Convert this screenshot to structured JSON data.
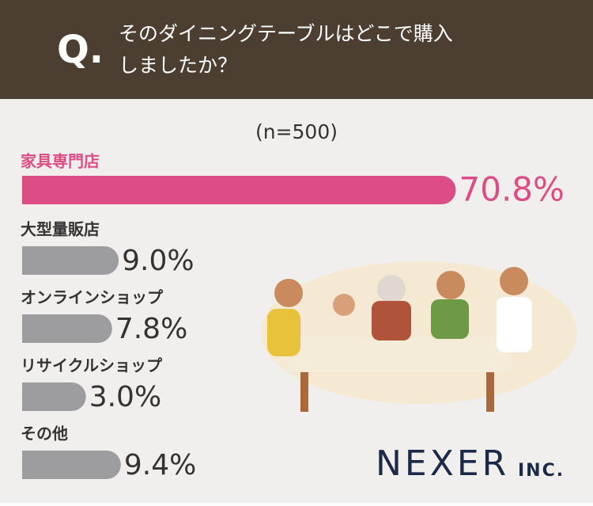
{
  "chart_data": {
    "type": "bar",
    "question_mark": "Q.",
    "title": [
      "そのダイニングテーブルはどこで購入",
      "しましたか？"
    ],
    "subtitle": "(n=500)",
    "categories": [
      "家具専門店",
      "大型量販店",
      "オンラインショップ",
      "リサイクルショップ",
      "その他"
    ],
    "values": [
      70.8,
      9.0,
      7.8,
      3.0,
      9.4
    ],
    "value_labels": [
      "70.8%",
      "9.0%",
      "7.8%",
      "3.0%",
      "9.4%"
    ],
    "colors": [
      "#dc4d86",
      "#9d9d9f",
      "#9d9d9f",
      "#9d9d9f",
      "#9d9d9f"
    ]
  },
  "logo": {
    "name": "NEXER",
    "suffix": "INC."
  }
}
